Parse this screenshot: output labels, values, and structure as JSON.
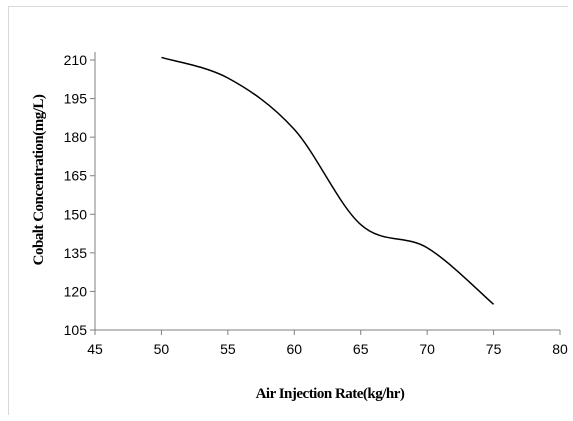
{
  "chart_data": {
    "type": "line",
    "title": "",
    "xlabel": "Air Injection Rate(kg/hr)",
    "ylabel": "Cobalt Concentration(mg/L)",
    "xlim": [
      45,
      80
    ],
    "ylim": [
      105,
      210
    ],
    "x_ticks": [
      45,
      50,
      55,
      60,
      65,
      70,
      75,
      80
    ],
    "y_ticks": [
      105,
      120,
      135,
      150,
      165,
      180,
      195,
      210
    ],
    "grid": false,
    "legend": "none",
    "series": [
      {
        "x": [
          50,
          55,
          60,
          65,
          70,
          75
        ],
        "y": [
          211,
          203,
          183,
          146,
          137,
          115
        ],
        "color": "#000000"
      }
    ]
  }
}
